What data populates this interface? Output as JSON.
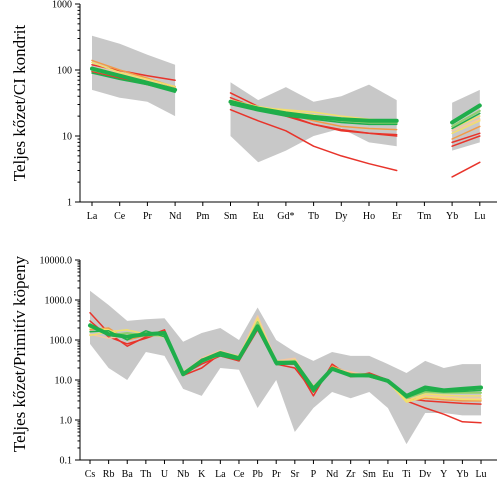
{
  "chart_data": [
    {
      "type": "line",
      "ylabel": "Teljes kőzet/CI kondrit",
      "yscale": "log",
      "ylim": [
        1,
        1000
      ],
      "ytick_labels": [
        "1",
        "10",
        "100",
        "1000"
      ],
      "categories": [
        "La",
        "Ce",
        "Pr",
        "Nd",
        "Pm",
        "Sm",
        "Eu",
        "Gd*",
        "Tb",
        "Dy",
        "Ho",
        "Er",
        "Tm",
        "Yb",
        "Lu"
      ],
      "envelope": {
        "color": "#c8c8c8",
        "segments": [
          {
            "x": [
              0,
              1,
              2,
              3
            ],
            "upper": [
              330,
              250,
              170,
              120
            ],
            "lower": [
              50,
              38,
              33,
              20
            ]
          },
          {
            "x": [
              5,
              6,
              7,
              8,
              9,
              10,
              11
            ],
            "upper": [
              65,
              35,
              55,
              33,
              40,
              60,
              35
            ],
            "lower": [
              10,
              4,
              6,
              10,
              13,
              8,
              7
            ]
          },
          {
            "x": [
              13,
              14
            ],
            "upper": [
              32,
              50
            ],
            "lower": [
              6,
              8
            ]
          }
        ]
      },
      "series": [
        {
          "color": "#e8342b",
          "width": 1.5,
          "values": [
            120,
            98,
            82,
            70,
            null,
            45,
            28,
            21,
            15,
            12,
            11,
            10.5,
            null,
            8,
            11
          ]
        },
        {
          "color": "#e8342b",
          "width": 1.5,
          "values": [
            100,
            80,
            68,
            56,
            null,
            38,
            26,
            20,
            15,
            12.5,
            11,
            10,
            null,
            7,
            10
          ]
        },
        {
          "color": "#e8342b",
          "width": 1.5,
          "values": [
            95,
            75,
            60,
            48,
            null,
            25,
            17,
            12,
            7,
            5,
            3.8,
            3,
            null,
            2.4,
            4
          ]
        },
        {
          "color": "#f29a48",
          "width": 1.5,
          "values": [
            140,
            100,
            75,
            55,
            null,
            33,
            27,
            22,
            17,
            14,
            13,
            12.5,
            null,
            9,
            14
          ]
        },
        {
          "color": "#f5c8a0",
          "width": 1.5,
          "values": [
            110,
            90,
            70,
            52,
            null,
            31,
            26,
            23,
            20,
            17,
            16,
            15,
            null,
            12,
            18
          ]
        },
        {
          "color": "#f2df6c",
          "width": 1.5,
          "values": [
            130,
            92,
            72,
            56,
            null,
            30,
            27,
            25,
            23,
            20,
            18,
            17,
            null,
            13,
            20
          ]
        },
        {
          "color": "#f2df6c",
          "width": 1.5,
          "values": [
            105,
            85,
            66,
            50,
            null,
            35,
            28,
            24,
            21,
            18,
            17,
            16,
            null,
            11,
            17
          ]
        },
        {
          "color": "#8fcf6c",
          "width": 2,
          "values": [
            100,
            80,
            62,
            48,
            null,
            33,
            26,
            22,
            19,
            17,
            16,
            15.5,
            null,
            14,
            24
          ]
        },
        {
          "color": "#1fae4b",
          "width": 4,
          "values": [
            105,
            82,
            64,
            50,
            null,
            33,
            26,
            22,
            19.5,
            18,
            17,
            17,
            null,
            16,
            29
          ]
        },
        {
          "color": "#1fae4b",
          "width": 1.5,
          "values": [
            90,
            72,
            60,
            46,
            null,
            30,
            24,
            20,
            18,
            16,
            15,
            15,
            null,
            13,
            22
          ]
        }
      ]
    },
    {
      "type": "line",
      "ylabel": "Teljes kőzet/Primitív köpeny",
      "yscale": "log",
      "ylim": [
        0.1,
        10000
      ],
      "ytick_labels": [
        "0.1",
        "1.0",
        "10.0",
        "100.0",
        "1000.0",
        "10000.0"
      ],
      "categories": [
        "Cs",
        "Rb",
        "Ba",
        "Th",
        "U",
        "Nb",
        "K",
        "La",
        "Ce",
        "Pb",
        "Pr",
        "Sr",
        "P",
        "Nd",
        "Zr",
        "Sm",
        "Eu",
        "Ti",
        "Dy",
        "Y",
        "Yb",
        "Lu"
      ],
      "envelope": {
        "color": "#c8c8c8",
        "segments": [
          {
            "x": [
              0,
              1,
              2,
              3,
              4,
              5,
              6,
              7,
              8,
              9,
              10,
              11,
              12,
              13,
              14,
              15,
              16,
              17,
              18,
              19,
              20,
              21
            ],
            "upper": [
              1700,
              750,
              300,
              330,
              350,
              90,
              150,
              200,
              100,
              650,
              100,
              50,
              30,
              50,
              40,
              40,
              25,
              15,
              30,
              20,
              25,
              25
            ],
            "lower": [
              80,
              20,
              10,
              50,
              40,
              6,
              4,
              20,
              18,
              2,
              10,
              0.5,
              2,
              5,
              3.5,
              5,
              2,
              0.25,
              1.5,
              1.5,
              1.3,
              1.3
            ]
          }
        ]
      },
      "series": [
        {
          "color": "#e8342b",
          "width": 1.5,
          "values": [
            480,
            150,
            70,
            120,
            180,
            13,
            20,
            45,
            30,
            230,
            25,
            25,
            4,
            25,
            12,
            15,
            10,
            3,
            2,
            1.4,
            0.9,
            0.85
          ]
        },
        {
          "color": "#e8342b",
          "width": 1.5,
          "values": [
            300,
            120,
            80,
            110,
            160,
            14,
            25,
            40,
            30,
            180,
            25,
            20,
            5,
            20,
            12,
            13,
            9,
            3.5,
            3,
            2.8,
            2.6,
            2.5
          ]
        },
        {
          "color": "#f29a48",
          "width": 1.5,
          "values": [
            180,
            200,
            100,
            130,
            140,
            13,
            30,
            50,
            35,
            260,
            28,
            30,
            5,
            22,
            15,
            14,
            10,
            3,
            3.5,
            3.2,
            3,
            3
          ]
        },
        {
          "color": "#f5c8a0",
          "width": 1.5,
          "values": [
            140,
            110,
            130,
            160,
            130,
            15,
            35,
            55,
            38,
            400,
            30,
            35,
            6,
            20,
            16,
            13,
            10,
            3.2,
            4,
            3.8,
            3.5,
            3.5
          ]
        },
        {
          "color": "#f2df6c",
          "width": 1.5,
          "values": [
            130,
            160,
            180,
            140,
            120,
            16,
            30,
            48,
            40,
            300,
            30,
            28,
            7,
            18,
            14,
            12,
            9,
            3,
            4.5,
            4.2,
            4,
            4
          ]
        },
        {
          "color": "#f2df6c",
          "width": 1.5,
          "values": [
            200,
            180,
            110,
            150,
            150,
            14,
            28,
            42,
            36,
            350,
            26,
            32,
            6,
            19,
            13,
            12,
            9,
            2.8,
            3.8,
            3.5,
            3.3,
            3.2
          ]
        },
        {
          "color": "#8fcf6c",
          "width": 2,
          "values": [
            250,
            130,
            150,
            130,
            130,
            14,
            32,
            45,
            34,
            280,
            27,
            30,
            5.5,
            20,
            14,
            13,
            9.5,
            3.5,
            5,
            4.8,
            4.8,
            4.8
          ]
        },
        {
          "color": "#1fae4b",
          "width": 4,
          "values": [
            230,
            140,
            120,
            140,
            150,
            14,
            30,
            47,
            35,
            220,
            27,
            27,
            6,
            19,
            13,
            13,
            9.5,
            4,
            6.5,
            5.5,
            6,
            6.5
          ]
        },
        {
          "color": "#1fae4b",
          "width": 1.5,
          "values": [
            160,
            170,
            100,
            170,
            120,
            13,
            33,
            40,
            32,
            190,
            24,
            26,
            5,
            18,
            13,
            12,
            9,
            3.6,
            5.5,
            5,
            5.2,
            5.5
          ]
        }
      ]
    }
  ]
}
